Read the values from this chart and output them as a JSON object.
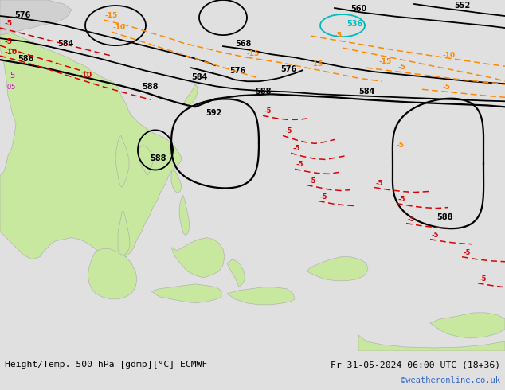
{
  "title_left": "Height/Temp. 500 hPa [gdmp][°C] ECMWF",
  "title_right": "Fr 31-05-2024 06:00 UTC (18+36)",
  "watermark": "©weatheronline.co.uk",
  "ocean_color": "#e8eef2",
  "land_green": "#c8e8a0",
  "land_gray": "#d0d0d0",
  "land_edge": "#aaaaaa",
  "fig_width": 6.34,
  "fig_height": 4.9,
  "dpi": 100,
  "contour_black": "#000000",
  "contour_cyan": "#00bbbb",
  "temp_orange": "#ff8800",
  "temp_red": "#dd0000",
  "temp_magenta": "#cc00cc"
}
